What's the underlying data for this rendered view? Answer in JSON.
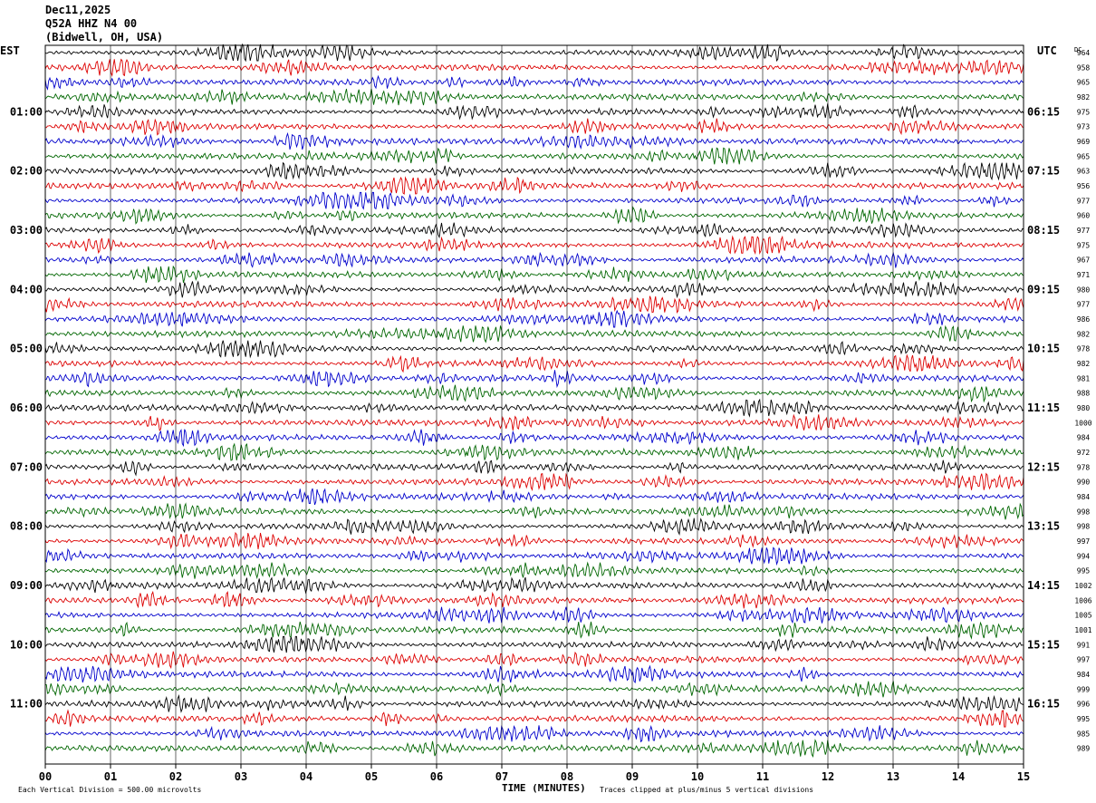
{
  "header": {
    "date": "Dec11,2025",
    "station": "Q52A HHZ N4 00",
    "location": "(Bidwell, OH, USA)"
  },
  "left_zone": "EST",
  "right_zone": "UTC",
  "dc_label": "DC",
  "footer": {
    "scale_note": "Each Vertical Division =  500.00 microvolts",
    "clip_note": "Traces clipped at plus/minus 5 vertical divisions"
  },
  "colors": {
    "trace_cycle": [
      "#000000",
      "#dd0000",
      "#0000cc",
      "#006600"
    ],
    "grid": "#000000"
  },
  "chart_data": {
    "type": "line",
    "title": "",
    "xlabel": "TIME (MINUTES)",
    "ylabel": "",
    "xlim": [
      0,
      15
    ],
    "x_ticks": [
      "00",
      "01",
      "02",
      "03",
      "04",
      "05",
      "06",
      "07",
      "08",
      "09",
      "10",
      "11",
      "12",
      "13",
      "14",
      "15"
    ],
    "grid": true,
    "trace_count": 48,
    "left_hour_labels": [
      "01:00",
      "02:00",
      "03:00",
      "04:00",
      "05:00",
      "06:00",
      "07:00",
      "08:00",
      "09:00",
      "10:00",
      "11:00"
    ],
    "right_hour_labels": [
      "06:15",
      "07:15",
      "08:15",
      "09:15",
      "10:15",
      "11:15",
      "12:15",
      "13:15",
      "14:15",
      "15:15",
      "16:15"
    ],
    "dc_offsets": [
      "964",
      "958",
      "965",
      "982",
      "975",
      "973",
      "969",
      "965",
      "963",
      "956",
      "977",
      "960",
      "977",
      "975",
      "967",
      "971",
      "980",
      "977",
      "986",
      "982",
      "978",
      "982",
      "981",
      "988",
      "980",
      "1000",
      "984",
      "972",
      "978",
      "990",
      "984",
      "998",
      "998",
      "997",
      "994",
      "995",
      "1002",
      "1006",
      "1005",
      "1001",
      "991",
      "997",
      "984",
      "999",
      "996",
      "995",
      "985",
      "989"
    ]
  }
}
